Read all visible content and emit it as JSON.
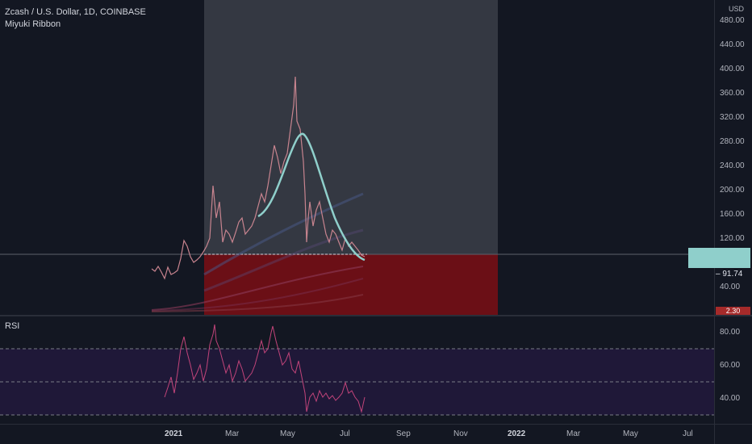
{
  "header": {
    "symbol_title": "Zcash / U.S. Dollar, 1D, COINBASE",
    "indicator": "Miyuki Ribbon",
    "currency": "USD"
  },
  "price_axis": {
    "ticks": [
      "480.00",
      "440.00",
      "400.00",
      "360.00",
      "320.00",
      "280.00",
      "240.00",
      "200.00",
      "160.00",
      "120.00",
      "40.00"
    ],
    "last_price_tag": "",
    "level_label": "91.74",
    "red_tag": "2.30"
  },
  "rsi_pane": {
    "label": "RSI",
    "ticks": [
      "80.00",
      "60.00",
      "40.00"
    ]
  },
  "time_axis": {
    "ticks": [
      "2021",
      "Mar",
      "May",
      "Jul",
      "Sep",
      "Nov",
      "2022",
      "Mar",
      "May",
      "Jul"
    ]
  },
  "colors": {
    "background": "#131722",
    "profit_zone": "#363a45",
    "loss_zone": "#6b0f16",
    "ma_line": "#8fcfcb",
    "rsi_line": "#c2447a",
    "rsi_band": "#1f1838"
  }
}
